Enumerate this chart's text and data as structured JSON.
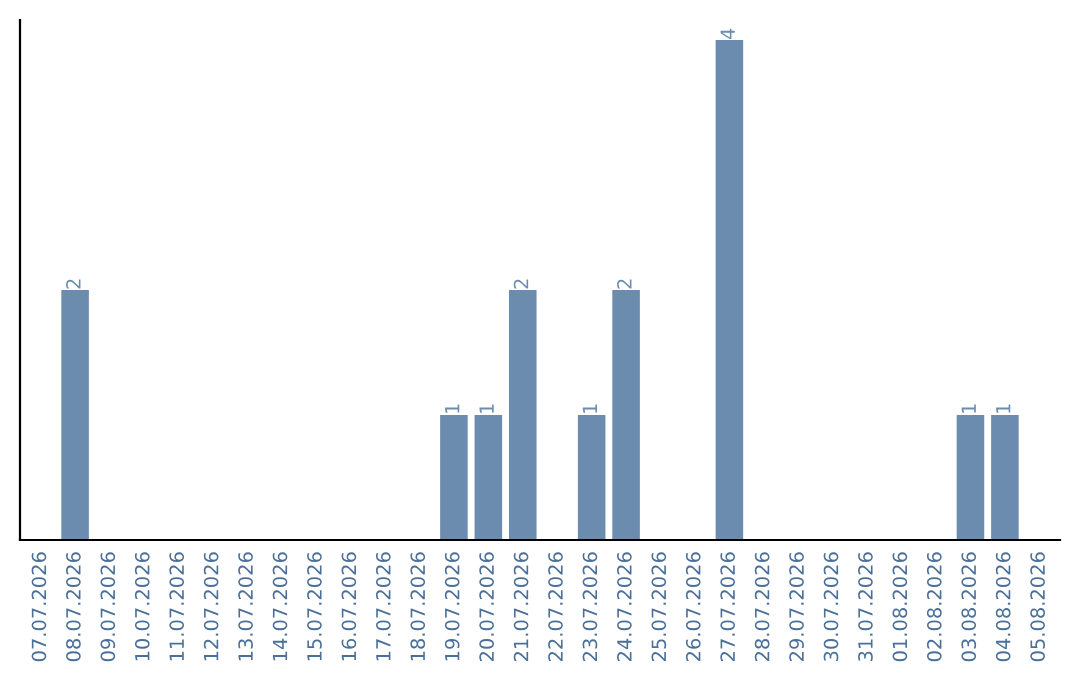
{
  "chart_data": {
    "type": "bar",
    "categories": [
      "07.07.2026",
      "08.07.2026",
      "09.07.2026",
      "10.07.2026",
      "11.07.2026",
      "12.07.2026",
      "13.07.2026",
      "14.07.2026",
      "15.07.2026",
      "16.07.2026",
      "17.07.2026",
      "18.07.2026",
      "19.07.2026",
      "20.07.2026",
      "21.07.2026",
      "22.07.2026",
      "23.07.2026",
      "24.07.2026",
      "25.07.2026",
      "26.07.2026",
      "27.07.2026",
      "28.07.2026",
      "29.07.2026",
      "30.07.2026",
      "31.07.2026",
      "01.08.2026",
      "02.08.2026",
      "03.08.2026",
      "04.08.2026",
      "05.08.2026"
    ],
    "values": [
      0,
      2,
      0,
      0,
      0,
      0,
      0,
      0,
      0,
      0,
      0,
      0,
      1,
      1,
      2,
      0,
      1,
      2,
      0,
      0,
      4,
      0,
      0,
      0,
      0,
      0,
      0,
      1,
      1,
      0
    ],
    "value_labels": [
      null,
      "2",
      null,
      null,
      null,
      null,
      null,
      null,
      null,
      null,
      null,
      null,
      "1",
      "1",
      "2",
      null,
      "1",
      "2",
      null,
      null,
      "4",
      null,
      null,
      null,
      null,
      null,
      null,
      "1",
      "1",
      null
    ],
    "color": "#6b8cae",
    "tick_labels": "x",
    "grid": false
  }
}
